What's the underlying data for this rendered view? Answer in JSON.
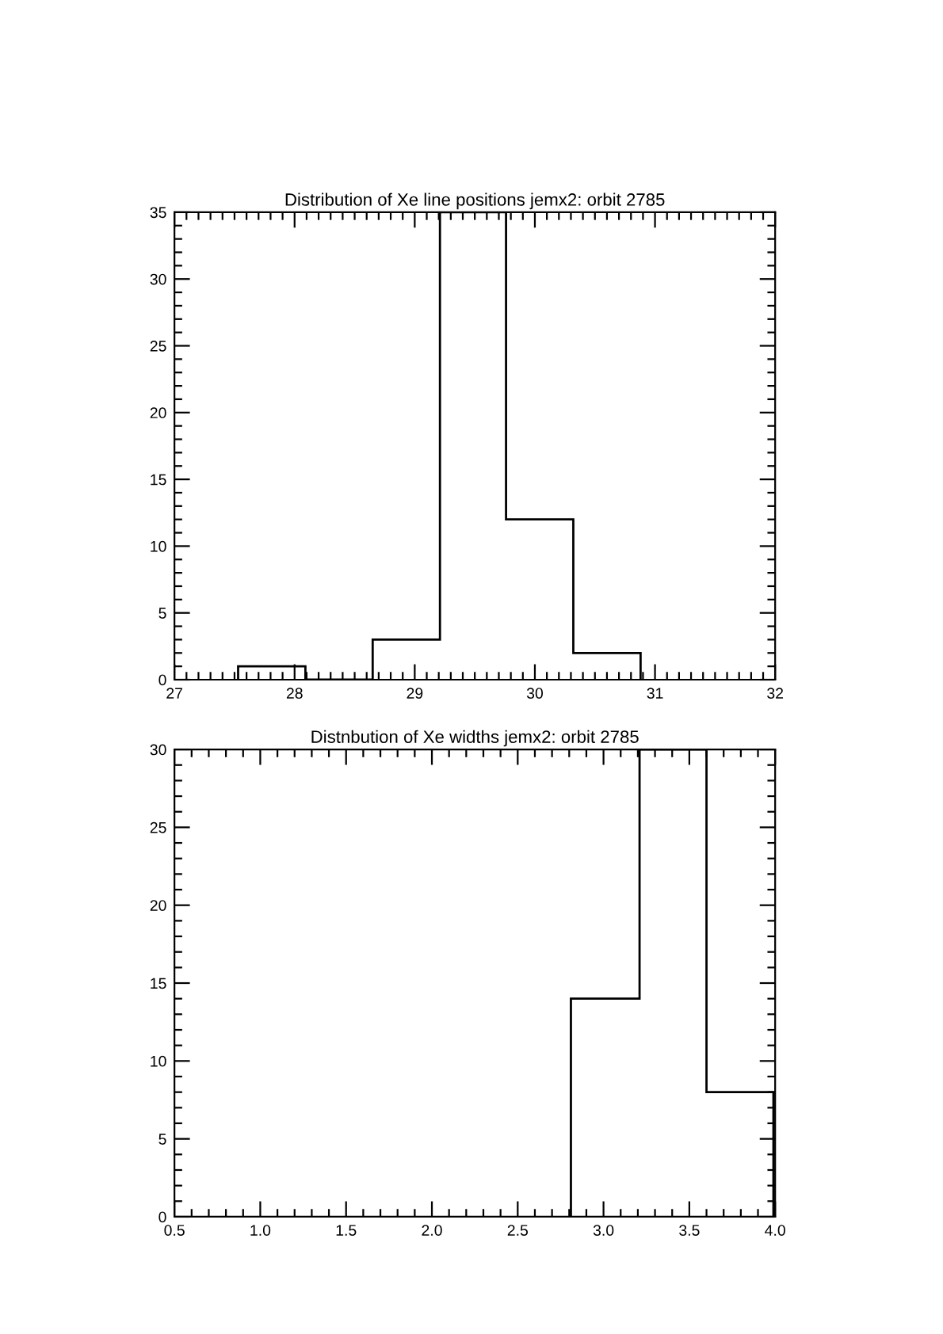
{
  "chart_data": [
    {
      "type": "histogram",
      "title": "Distribution of Xe line positions jemx2: orbit 2785",
      "bins": [
        27.53,
        28.09,
        28.65,
        29.21,
        29.76,
        30.32,
        30.88
      ],
      "values": [
        1,
        0,
        3,
        35,
        12,
        2
      ],
      "color": "#000000",
      "xlim": [
        27,
        32
      ],
      "xticks": [
        27,
        28,
        29,
        30,
        31,
        32
      ],
      "ylim": [
        0,
        35
      ],
      "yticks": [
        0,
        5,
        10,
        15,
        20,
        25,
        30,
        35
      ],
      "grid": false
    },
    {
      "type": "histogram",
      "title": "Distnbution of Xe widths jemx2: orbit 2785",
      "bins": [
        2.81,
        3.21,
        3.6,
        3.99
      ],
      "values": [
        14,
        30,
        8
      ],
      "color": "#000000",
      "xlim": [
        0.5,
        4.0
      ],
      "xticks": [
        {
          "value": 0.5,
          "label": "0.5"
        },
        {
          "value": 1.0,
          "label": "1.0"
        },
        {
          "value": 1.5,
          "label": "1.5"
        },
        {
          "value": 2.0,
          "label": "2.0"
        },
        {
          "value": 2.5,
          "label": "2.5"
        },
        {
          "value": 3.0,
          "label": "3.0"
        },
        {
          "value": 3.5,
          "label": "3.5"
        },
        {
          "value": 4.0,
          "label": "4.0"
        }
      ],
      "ylim": [
        0,
        30
      ],
      "yticks": [
        0,
        5,
        10,
        15,
        20,
        25,
        30
      ],
      "grid": false
    }
  ]
}
